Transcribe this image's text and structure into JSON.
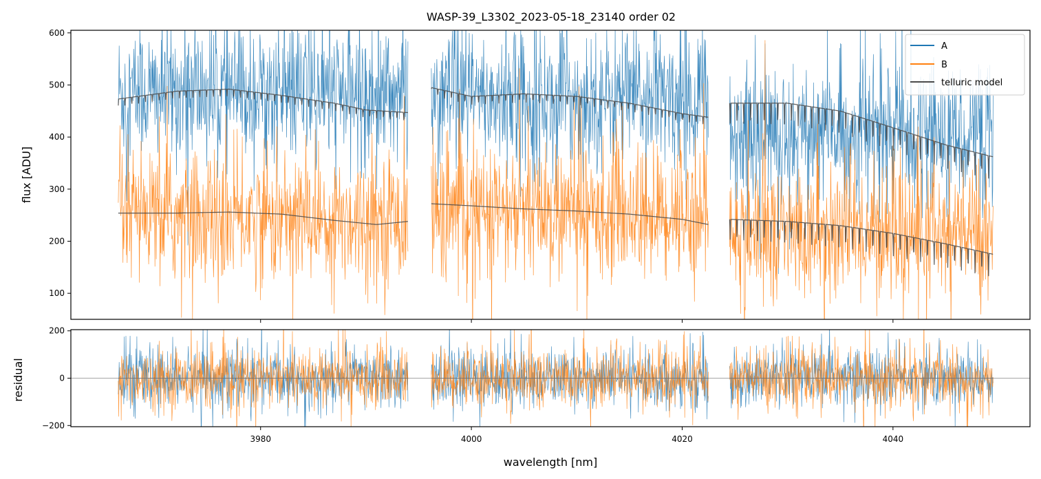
{
  "chart_data": [
    {
      "panel": "top",
      "type": "line",
      "title": "WASP-39_L3302_2023-05-18_23140  order 02",
      "ylabel": "flux [ADU]",
      "xlabel": "",
      "xlim": [
        3962,
        4053
      ],
      "ylim": [
        50,
        605
      ],
      "yticks": [
        100,
        200,
        300,
        400,
        500,
        600
      ],
      "xticks": [
        3980,
        4000,
        4020,
        4040
      ],
      "segments": [
        [
          3966.5,
          3994.0
        ],
        [
          3996.2,
          4022.5
        ],
        [
          4024.5,
          4049.5
        ]
      ],
      "legend_position": "top-right",
      "series": [
        {
          "name": "A",
          "color": "#1f77b4",
          "mean_by_segment": [
            485,
            475,
            410
          ],
          "noise_sd": 65
        },
        {
          "name": "B",
          "color": "#ff7f0e",
          "mean_by_segment": [
            245,
            255,
            215
          ],
          "noise_sd": 62
        },
        {
          "name": "telluric model",
          "color": "#4a4a4a",
          "curves": [
            {
              "segment": 0,
              "x": [
                3966.5,
                3972,
                3977,
                3982,
                3987,
                3990,
                3994.0
              ],
              "y": [
                473,
                488,
                492,
                480,
                465,
                452,
                447
              ]
            },
            {
              "segment": 1,
              "x": [
                3996.2,
                4000,
                4005,
                4010,
                4015,
                4020,
                4022.5
              ],
              "y": [
                495,
                478,
                483,
                478,
                465,
                445,
                438
              ]
            },
            {
              "segment": 2,
              "x": [
                4024.5,
                4030,
                4035,
                4040,
                4045,
                4049.5
              ],
              "y": [
                465,
                465,
                450,
                418,
                385,
                362
              ]
            },
            {
              "segment": 0,
              "x": [
                3966.5,
                3972,
                3977,
                3982,
                3987,
                3991,
                3994.0
              ],
              "y": [
                254,
                254,
                256,
                252,
                240,
                232,
                238
              ]
            },
            {
              "segment": 1,
              "x": [
                3996.2,
                4000,
                4005,
                4010,
                4015,
                4020,
                4022.5
              ],
              "y": [
                272,
                268,
                262,
                258,
                252,
                242,
                232
              ]
            },
            {
              "segment": 2,
              "x": [
                4024.5,
                4030,
                4035,
                4040,
                4045,
                4049.5
              ],
              "y": [
                242,
                238,
                230,
                215,
                195,
                175
              ]
            }
          ]
        }
      ]
    },
    {
      "panel": "bottom",
      "type": "line",
      "title": "",
      "ylabel": "residual",
      "xlabel": "wavelength [nm]",
      "xlim": [
        3962,
        4053
      ],
      "ylim": [
        -205,
        205
      ],
      "yticks": [
        -200,
        0,
        200
      ],
      "xticks": [
        3980,
        4000,
        4020,
        4040
      ],
      "segments": [
        [
          3966.5,
          3994.0
        ],
        [
          3996.2,
          4022.5
        ],
        [
          4024.5,
          4049.5
        ]
      ],
      "series": [
        {
          "name": "A",
          "color": "#1f77b4",
          "mean": 0,
          "noise_sd": 60
        },
        {
          "name": "B",
          "color": "#ff7f0e",
          "mean": 0,
          "noise_sd": 60
        }
      ],
      "zero_line": 0
    }
  ]
}
